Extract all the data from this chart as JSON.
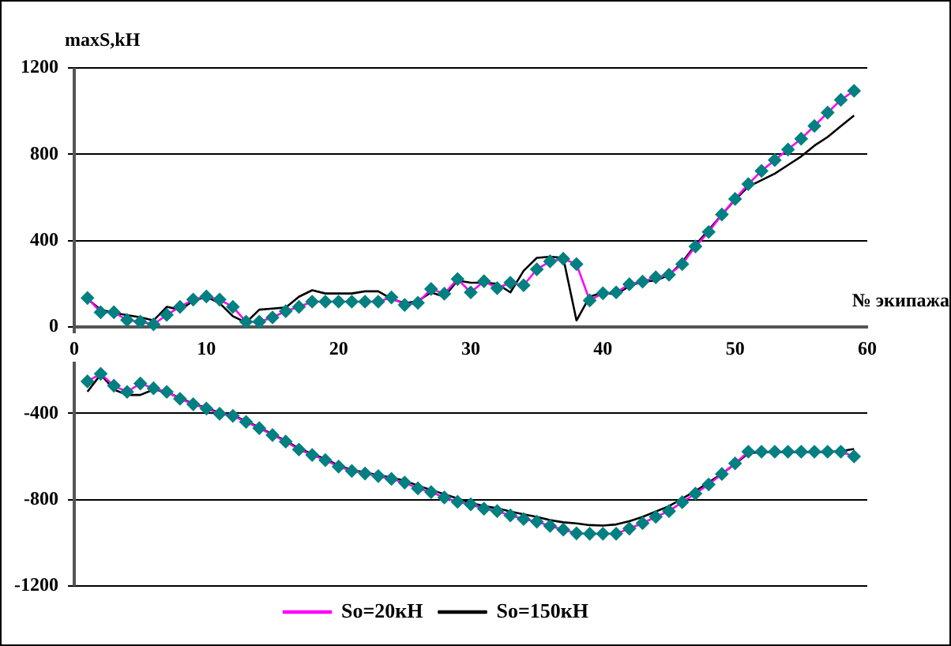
{
  "chart_data": {
    "type": "line",
    "ylabel": "maxS,kH",
    "xlabel": "№ экипажа",
    "xlim": [
      0,
      60
    ],
    "xticks": [
      0,
      10,
      20,
      30,
      40,
      50,
      60
    ],
    "ylim": [
      -1200,
      1200
    ],
    "yticks": [
      -1200,
      -800,
      -400,
      0,
      400,
      800,
      1200
    ],
    "grid": "y",
    "legend": "bottom",
    "line_style": "solid",
    "x": [
      1,
      2,
      3,
      4,
      5,
      6,
      7,
      8,
      9,
      10,
      11,
      12,
      13,
      14,
      15,
      16,
      17,
      18,
      19,
      20,
      21,
      22,
      23,
      24,
      25,
      26,
      27,
      28,
      29,
      30,
      31,
      32,
      33,
      34,
      35,
      36,
      37,
      38,
      39,
      40,
      41,
      42,
      43,
      44,
      45,
      46,
      47,
      48,
      49,
      50,
      51,
      52,
      53,
      54,
      55,
      56,
      57,
      58,
      59
    ],
    "series": [
      {
        "name": "So=20кН",
        "color": "#ff00ff",
        "colors": [
          "#008080",
          "#008080",
          "#008080",
          "#008080",
          "#008080",
          "#008080",
          "#008080",
          "#008080",
          "#008080",
          "#008080",
          "#008080",
          "#008080",
          "#008080",
          "#008080",
          "#008080",
          "#008080",
          "#008080",
          "#008080",
          "#008080",
          "#008080",
          "#008080",
          "#008080",
          "#008080",
          "#008080",
          "#008080",
          "#008080",
          "#008080",
          "#008080",
          "#008080",
          "#008080",
          "#008080",
          "#008080",
          "#008080",
          "#008080",
          "#008080",
          "#008080",
          "#008080",
          "#008080",
          "#008080",
          "#008080",
          "#008080",
          "#008080",
          "#008080",
          "#008080",
          "#008080",
          "#008080",
          "#008080",
          "#008080",
          "#008080",
          "#008080",
          "#008080",
          "#008080",
          "#008080",
          "#008080",
          "#008080",
          "#008080",
          "#008080",
          "#008080",
          "#008080"
        ],
        "marker": "diamond",
        "values": [
          134,
          68,
          68,
          32,
          24,
          12,
          56,
          93,
          127,
          141,
          127,
          93,
          24,
          24,
          44,
          73,
          93,
          117,
          117,
          117,
          117,
          117,
          117,
          137,
          102,
          112,
          176,
          154,
          222,
          160,
          212,
          180,
          205,
          193,
          267,
          304,
          316,
          291,
          123,
          156,
          160,
          198,
          210,
          230,
          242,
          291,
          373,
          440,
          521,
          593,
          662,
          723,
          773,
          822,
          872,
          931,
          993,
          1052,
          1094
        ]
      },
      {
        "name": "So=150кН",
        "color": "#000000",
        "marker": "none",
        "values": [
          130,
          80,
          65,
          55,
          45,
          30,
          93,
          80,
          120,
          140,
          110,
          50,
          20,
          80,
          85,
          90,
          140,
          170,
          155,
          155,
          155,
          165,
          165,
          130,
          110,
          120,
          160,
          140,
          215,
          205,
          205,
          200,
          160,
          260,
          320,
          325,
          320,
          30,
          140,
          160,
          150,
          190,
          210,
          215,
          240,
          300,
          380,
          450,
          520,
          590,
          650,
          680,
          710,
          750,
          790,
          840,
          880,
          930,
          980
        ]
      },
      {
        "color": "#ff00ff",
        "colors": [
          "#008080",
          "#008080",
          "#008080",
          "#008080",
          "#008080",
          "#008080",
          "#008080",
          "#008080",
          "#008080",
          "#008080",
          "#008080",
          "#008080",
          "#008080",
          "#008080",
          "#008080",
          "#008080",
          "#008080",
          "#008080",
          "#008080",
          "#008080",
          "#008080",
          "#008080",
          "#008080",
          "#008080",
          "#008080",
          "#008080",
          "#008080",
          "#008080",
          "#008080",
          "#008080",
          "#008080",
          "#008080",
          "#008080",
          "#008080",
          "#008080",
          "#008080",
          "#008080",
          "#008080",
          "#008080",
          "#008080",
          "#008080",
          "#008080",
          "#008080",
          "#008080",
          "#008080",
          "#008080",
          "#008080",
          "#008080",
          "#008080",
          "#008080",
          "#008080",
          "#008080",
          "#008080",
          "#008080",
          "#008080",
          "#008080",
          "#008080",
          "#008080",
          "#008080"
        ],
        "marker": "diamond",
        "values": [
          -252,
          -217,
          -272,
          -301,
          -262,
          -284,
          -301,
          -333,
          -358,
          -378,
          -402,
          -412,
          -440,
          -469,
          -501,
          -531,
          -568,
          -593,
          -617,
          -647,
          -667,
          -679,
          -691,
          -704,
          -721,
          -748,
          -765,
          -790,
          -810,
          -822,
          -842,
          -853,
          -873,
          -890,
          -902,
          -922,
          -939,
          -956,
          -958,
          -958,
          -958,
          -934,
          -909,
          -880,
          -853,
          -812,
          -772,
          -730,
          -681,
          -632,
          -578,
          -578,
          -578,
          -578,
          -578,
          -578,
          -578,
          -578,
          -600
        ]
      },
      {
        "color": "#000000",
        "marker": "none",
        "values": [
          -300,
          -220,
          -290,
          -315,
          -315,
          -290,
          -301,
          -330,
          -355,
          -375,
          -398,
          -410,
          -436,
          -465,
          -497,
          -527,
          -563,
          -588,
          -612,
          -642,
          -662,
          -674,
          -686,
          -698,
          -712,
          -735,
          -755,
          -775,
          -795,
          -815,
          -830,
          -840,
          -855,
          -868,
          -880,
          -895,
          -905,
          -910,
          -918,
          -920,
          -915,
          -900,
          -880,
          -855,
          -830,
          -795,
          -760,
          -720,
          -680,
          -635,
          -585,
          -580,
          -580,
          -580,
          -580,
          -580,
          -580,
          -575,
          -565
        ]
      }
    ]
  }
}
